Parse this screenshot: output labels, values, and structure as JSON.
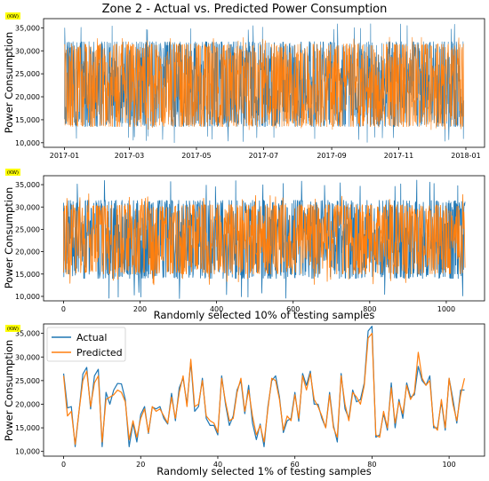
{
  "figure": {
    "title": "Zone 2 - Actual vs. Predicted Power Consumption"
  },
  "colors": {
    "actual": "#1f77b4",
    "predicted": "#ff7f0e",
    "unit_badge": "#ffff00"
  },
  "chart_data": [
    {
      "type": "line",
      "title": "Zone 2 - Actual vs. Predicted Power Consumption",
      "xlabel": "",
      "ylabel": "Power Consumption",
      "unit": "(KW)",
      "x_type": "date",
      "xlim": [
        "2016-12-13",
        "2018-01-18"
      ],
      "ylim": [
        9000,
        37000
      ],
      "xticks": [
        "2017-01",
        "2017-03",
        "2017-05",
        "2017-07",
        "2017-09",
        "2017-11",
        "2018-01"
      ],
      "yticks": [
        10000,
        15000,
        20000,
        25000,
        30000,
        35000
      ],
      "yticklabels": [
        "10,000",
        "15,000",
        "20,000",
        "25,000",
        "30,000",
        "35,000"
      ],
      "grid": false,
      "x_range": [
        "2017-01-01",
        "2017-12-30"
      ],
      "series": [
        {
          "name": "Actual",
          "min": 10000,
          "max": 36000,
          "typical_low": 13500,
          "typical_high": 32000
        },
        {
          "name": "Predicted",
          "min": 12500,
          "max": 33000,
          "typical_low": 13500,
          "typical_high": 31500
        }
      ]
    },
    {
      "type": "line",
      "title": "",
      "xlabel": "Randomly selected 10% of testing samples",
      "ylabel": "Power Consumption",
      "unit": "(KW)",
      "xlim": [
        -52,
        1100
      ],
      "ylim": [
        9000,
        37000
      ],
      "xticks": [
        0,
        200,
        400,
        600,
        800,
        1000
      ],
      "yticks": [
        10000,
        15000,
        20000,
        25000,
        30000,
        35000
      ],
      "yticklabels": [
        "10,000",
        "15,000",
        "20,000",
        "25,000",
        "30,000",
        "35,000"
      ],
      "grid": false,
      "n_points": 1050,
      "series": [
        {
          "name": "Actual",
          "min": 9500,
          "max": 36000,
          "typical_low": 14000,
          "typical_high": 31500
        },
        {
          "name": "Predicted",
          "min": 12500,
          "max": 33000,
          "typical_low": 15000,
          "typical_high": 30500
        }
      ]
    },
    {
      "type": "line",
      "title": "",
      "xlabel": "Randomly selected 1% of testing samples",
      "ylabel": "Power Consumption",
      "unit": "(KW)",
      "xlim": [
        -5.2,
        109.2
      ],
      "ylim": [
        9000,
        37000
      ],
      "xticks": [
        0,
        20,
        40,
        60,
        80,
        100
      ],
      "yticks": [
        10000,
        15000,
        20000,
        25000,
        30000,
        35000
      ],
      "yticklabels": [
        "10,000",
        "15,000",
        "20,000",
        "25,000",
        "30,000",
        "35,000"
      ],
      "grid": false,
      "legend": {
        "placement": "top-left",
        "entries": [
          "Actual",
          "Predicted"
        ]
      },
      "series": [
        {
          "name": "Actual",
          "values": [
            26500,
            19200,
            19500,
            11000,
            18500,
            26400,
            27800,
            19000,
            26000,
            27400,
            11000,
            22500,
            20000,
            23000,
            24400,
            24300,
            21000,
            11000,
            16000,
            12000,
            17800,
            19500,
            13800,
            19400,
            19000,
            19500,
            17000,
            15800,
            22300,
            16500,
            23500,
            25500,
            20000,
            29000,
            18500,
            19500,
            25500,
            17000,
            15500,
            15500,
            13500,
            26000,
            20000,
            15500,
            17500,
            23000,
            25000,
            18000,
            24000,
            16000,
            12500,
            15800,
            11000,
            19500,
            25000,
            26000,
            21500,
            14000,
            16500,
            17000,
            22500,
            16400,
            26500,
            24000,
            27000,
            20000,
            20000,
            17000,
            15000,
            22500,
            15500,
            12000,
            26500,
            19000,
            17000,
            23000,
            20500,
            21000,
            24500,
            35500,
            36500,
            13000,
            13500,
            18000,
            14500,
            24500,
            15000,
            21000,
            17000,
            24500,
            21500,
            22000,
            28000,
            25000,
            24000,
            26000,
            15000,
            15000,
            20500,
            14500,
            25500,
            21000,
            16000,
            23000,
            23000
          ],
          "note": ""
        },
        {
          "name": "Predicted",
          "values": [
            26000,
            17500,
            18500,
            11500,
            18500,
            25000,
            27000,
            19500,
            24500,
            26000,
            12000,
            21000,
            21500,
            22000,
            23000,
            22500,
            20500,
            12500,
            16500,
            13000,
            17000,
            19000,
            14000,
            19500,
            18500,
            19000,
            17500,
            16000,
            21500,
            17000,
            22500,
            26000,
            19500,
            29500,
            19500,
            20000,
            25000,
            17500,
            16500,
            16000,
            14000,
            25500,
            20500,
            16500,
            17000,
            22500,
            25500,
            18500,
            23000,
            17500,
            13500,
            15500,
            12000,
            19000,
            25500,
            25000,
            21000,
            14500,
            17500,
            16500,
            22000,
            17000,
            26000,
            23000,
            26500,
            21000,
            19500,
            17500,
            15000,
            22000,
            15000,
            13000,
            26000,
            20000,
            16500,
            22500,
            21500,
            20000,
            24000,
            34000,
            35000,
            13500,
            13000,
            18500,
            15000,
            23500,
            16000,
            20500,
            18000,
            24000,
            21000,
            22500,
            31000,
            25500,
            24000,
            25000,
            15500,
            14500,
            21000,
            15000,
            25500,
            20000,
            16500,
            22000,
            25500
          ]
        }
      ]
    }
  ]
}
